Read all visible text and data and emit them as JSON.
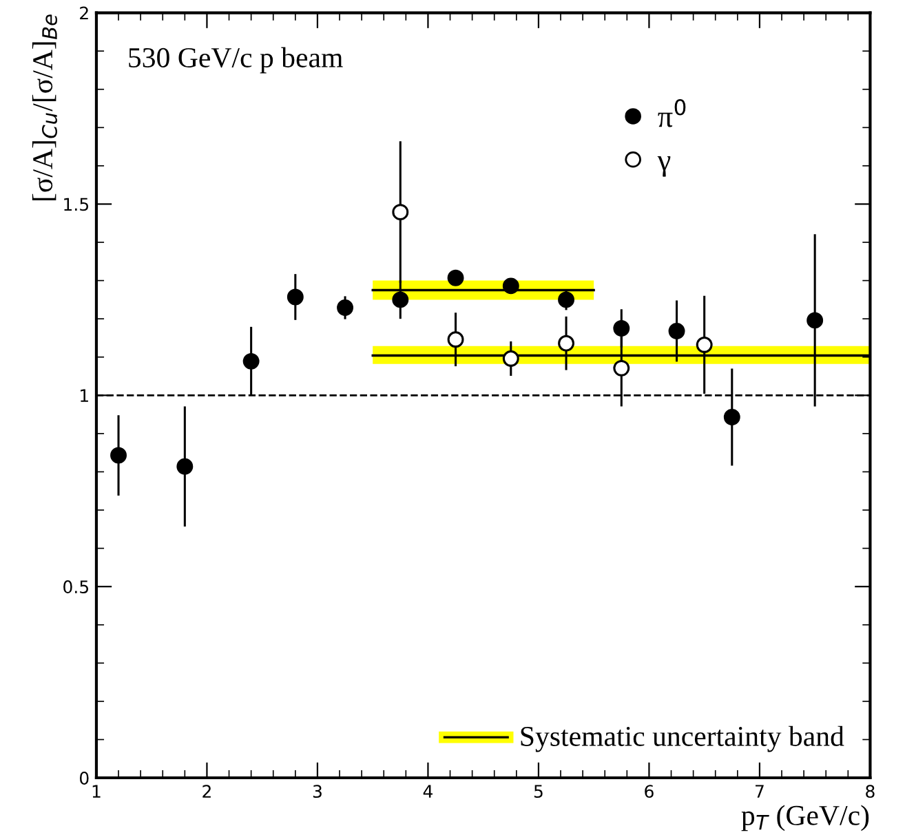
{
  "chart_data": {
    "type": "scatter",
    "xlabel": "p$_{T}$ (GeV/c)",
    "ylabel": "[σ/A]$_{Cu}$/[σ/A]$_{Be}$",
    "annotations": [
      "530 GeV/c p beam"
    ],
    "xlim": [
      1,
      8
    ],
    "xticks": [
      1,
      2,
      3,
      4,
      5,
      6,
      7,
      8
    ],
    "ylim": [
      0,
      2
    ],
    "yticks": [
      0,
      0.5,
      1,
      1.5,
      2
    ],
    "series": [
      {
        "name": "π$^{0}$",
        "color": "#000000",
        "marker": "circle",
        "x": [
          1.2,
          1.8,
          2.4,
          2.8,
          3.25,
          3.75,
          4.25,
          4.75,
          5.25,
          5.75,
          6.25,
          6.75,
          7.5
        ],
        "values": [
          0.843,
          0.814,
          1.089,
          1.257,
          1.229,
          1.25,
          1.307,
          1.286,
          1.25,
          1.175,
          1.168,
          0.943,
          1.196
        ],
        "errors": [
          0.105,
          0.157,
          0.09,
          0.06,
          0.03,
          0.05,
          null,
          null,
          0.027,
          0.05,
          0.08,
          0.127,
          0.225
        ]
      },
      {
        "name": "γ",
        "color": "#ffffff",
        "marker": "circle",
        "x": [
          3.75,
          4.25,
          4.75,
          5.25,
          5.75,
          6.5
        ],
        "values": [
          1.479,
          1.146,
          1.096,
          1.136,
          1.071,
          1.132
        ],
        "errors": [
          0.185,
          0.07,
          0.045,
          0.07,
          0.1,
          0.128
        ]
      },
      {
        "name": "Systematic uncertainty band",
        "type": "line",
        "color": "#000000",
        "x": [
          3.5,
          5.5
        ],
        "values": [
          1.275,
          1.275
        ],
        "lower": [
          1.25,
          1.25
        ],
        "upper": [
          1.3,
          1.3
        ]
      },
      {
        "type": "line",
        "color": "#000000",
        "x": [
          3.5,
          8
        ],
        "values": [
          1.104,
          1.104
        ],
        "lower": [
          1.082,
          1.082
        ],
        "upper": [
          1.129,
          1.129
        ]
      }
    ],
    "ref_lines": [
      {
        "axis": "y",
        "value": 1,
        "line_style": "dashed",
        "color": "#000000"
      }
    ],
    "legend": "bottom right"
  }
}
